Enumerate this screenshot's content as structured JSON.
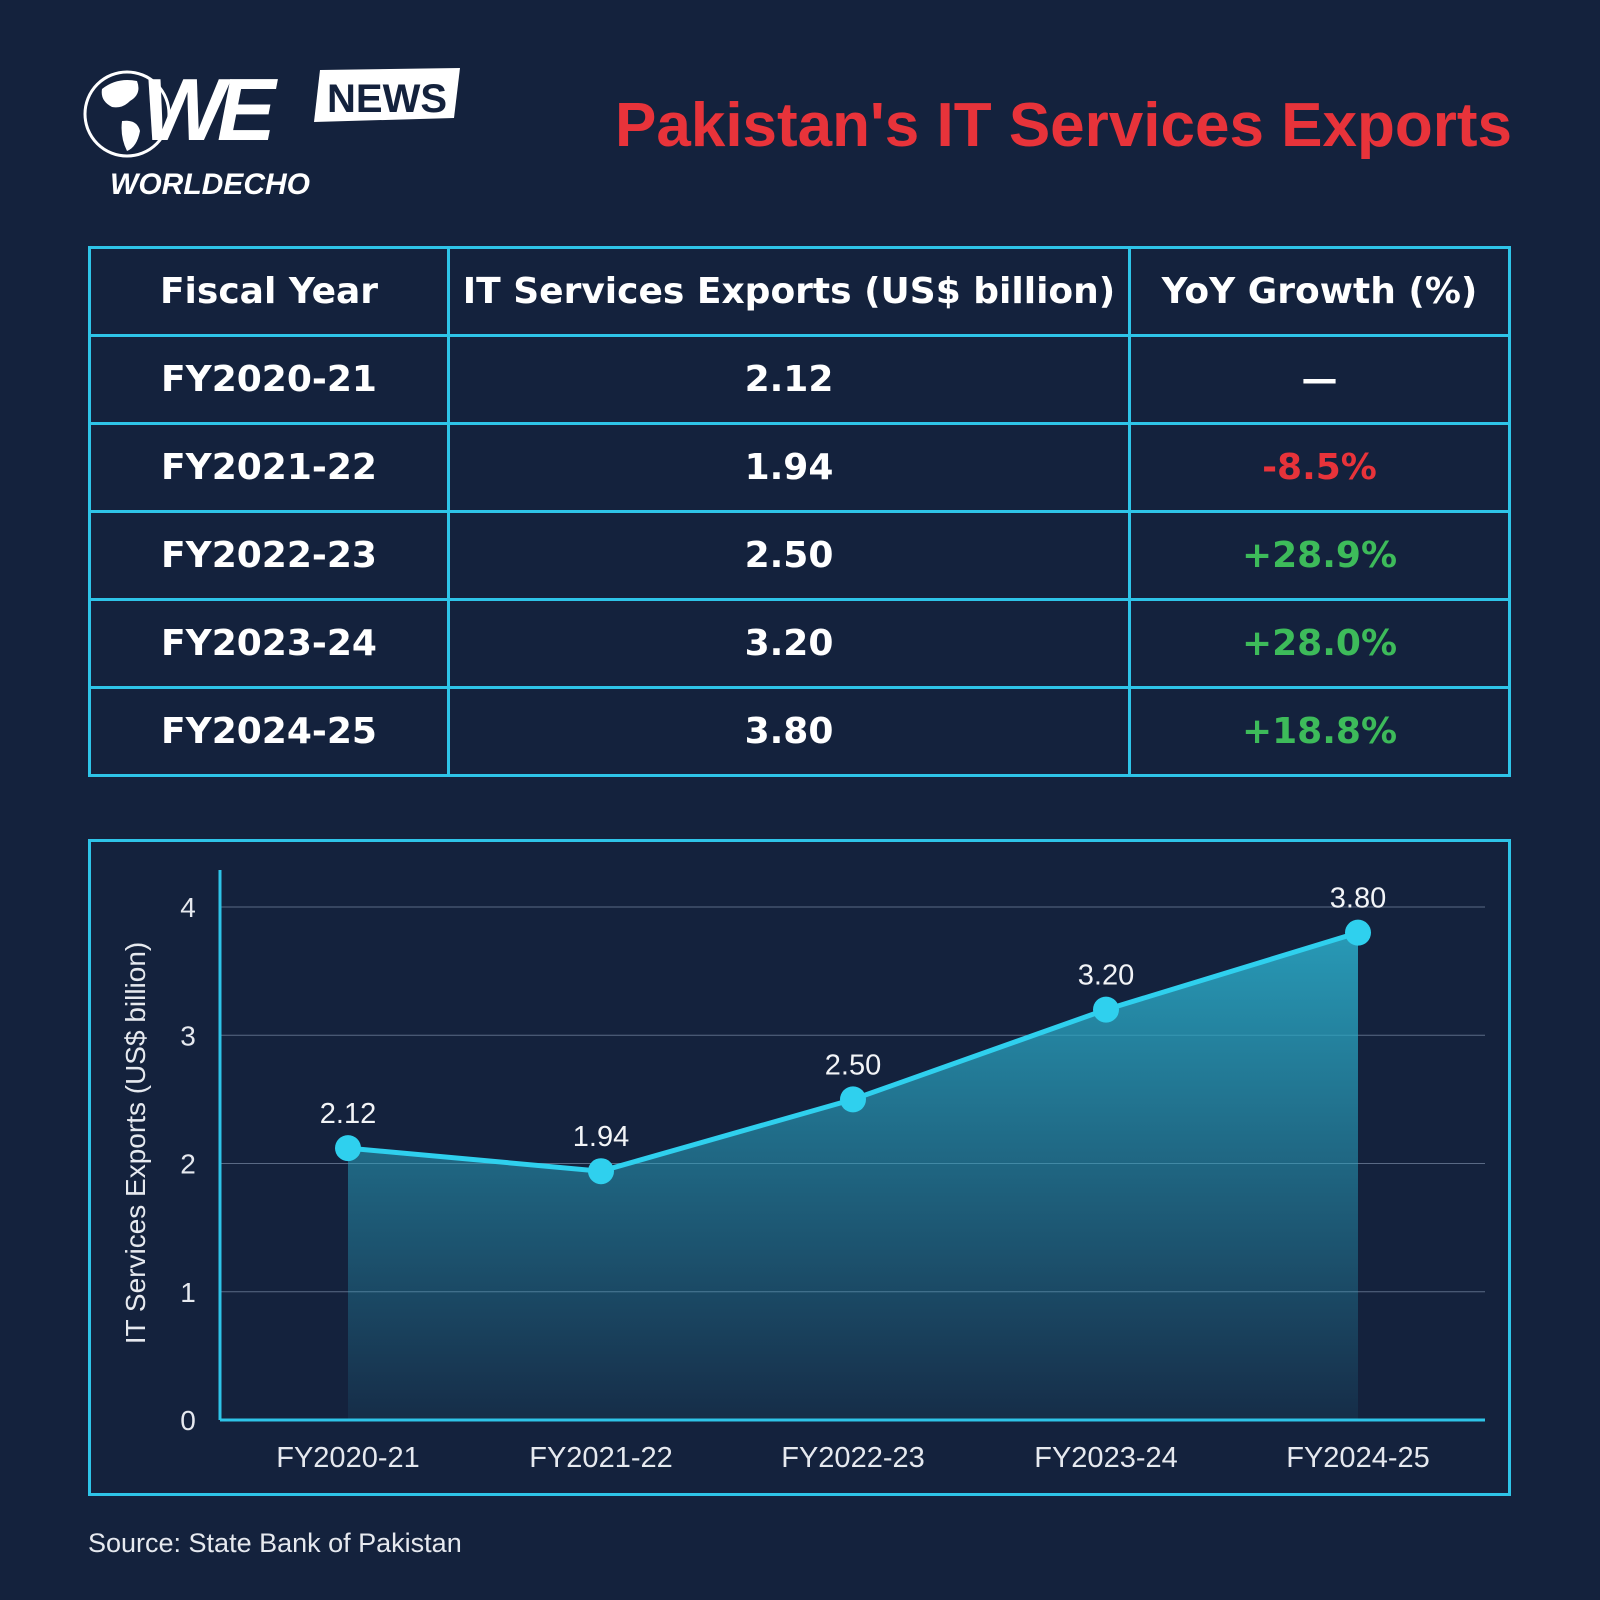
{
  "logo": {
    "main": "WE",
    "badge": "NEWS",
    "name": "WORLDECHO"
  },
  "title": "Pakistan's IT Services Exports",
  "table": {
    "headers": [
      "Fiscal Year",
      "IT Services Exports (US$ billion)",
      "YoY Growth (%)"
    ],
    "rows": [
      {
        "year": "FY2020-21",
        "exports": "2.12",
        "growth": "—",
        "trend": "none"
      },
      {
        "year": "FY2021-22",
        "exports": "1.94",
        "growth": "-8.5%",
        "trend": "neg"
      },
      {
        "year": "FY2022-23",
        "exports": "2.50",
        "growth": "+28.9%",
        "trend": "pos"
      },
      {
        "year": "FY2023-24",
        "exports": "3.20",
        "growth": "+28.0%",
        "trend": "pos"
      },
      {
        "year": "FY2024-25",
        "exports": "3.80",
        "growth": "+18.8%",
        "trend": "pos"
      }
    ]
  },
  "chart_data": {
    "type": "area",
    "categories": [
      "FY2020-21",
      "FY2021-22",
      "FY2022-23",
      "FY2023-24",
      "FY2024-25"
    ],
    "values": [
      2.12,
      1.94,
      2.5,
      3.2,
      3.8
    ],
    "data_labels": [
      "2.12",
      "1.94",
      "2.50",
      "3.20",
      "3.80"
    ],
    "xlabel": "",
    "ylabel": "IT Services Exports (US$ billion)",
    "ylim": [
      0,
      4
    ],
    "yticks": [
      "0",
      "1",
      "2",
      "3",
      "4"
    ],
    "grid": true,
    "colors": {
      "line": "#2fd0ee",
      "fill": "#2aa7c4",
      "border": "#2ec4e8",
      "negative": "#e8333a",
      "positive": "#3dbb5a",
      "title": "#e8333a"
    }
  },
  "source": "Source: State Bank of Pakistan"
}
